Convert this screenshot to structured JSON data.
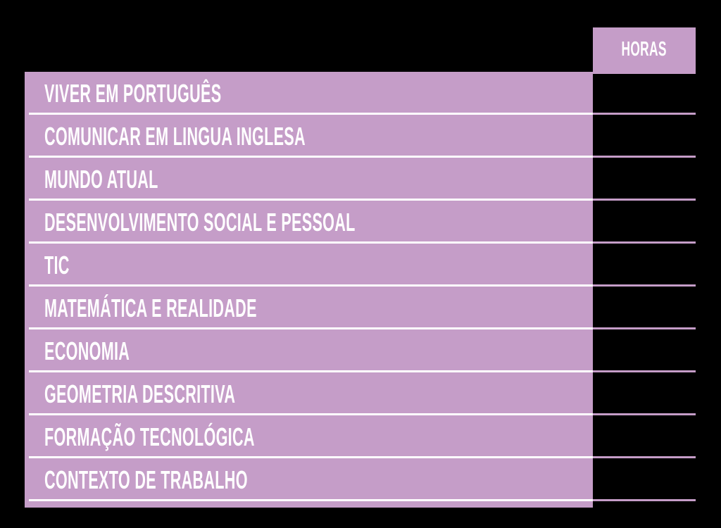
{
  "colors": {
    "background": "#000000",
    "purple": "#c59dc8",
    "text": "#ffffff"
  },
  "header": {
    "hours_label": "HORAS"
  },
  "table": {
    "rows": [
      {
        "subject": "VIVER EM PORTUGUÊS",
        "hours": ""
      },
      {
        "subject": "COMUNICAR EM LINGUA INGLESA",
        "hours": ""
      },
      {
        "subject": "MUNDO ATUAL",
        "hours": ""
      },
      {
        "subject": "DESENVOLVIMENTO SOCIAL E PESSOAL",
        "hours": ""
      },
      {
        "subject": "TIC",
        "hours": ""
      },
      {
        "subject": "MATEMÁTICA E REALIDADE",
        "hours": ""
      },
      {
        "subject": "ECONOMIA",
        "hours": ""
      },
      {
        "subject": "GEOMETRIA DESCRITIVA",
        "hours": ""
      },
      {
        "subject": "FORMAÇÃO TECNOLÓGICA",
        "hours": ""
      },
      {
        "subject": "CONTEXTO DE TRABALHO",
        "hours": ""
      }
    ]
  }
}
